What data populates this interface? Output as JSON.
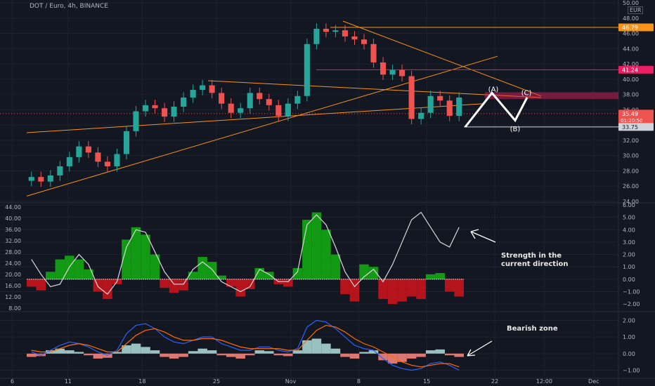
{
  "header": {
    "title": "DOT / Euro, 4h, BINANCE",
    "currency": "EUR"
  },
  "colors": {
    "background": "#131722",
    "grid": "#1e222d",
    "axis_text": "#b2b5be",
    "up": "#26a69a",
    "down": "#ef5350",
    "orange": "#f7931a",
    "red_line": "#e91e63",
    "green_hist": "#13a813",
    "red_hist": "#c9141c",
    "white_line": "#d9d9d9",
    "macd_blue": "#2962ff",
    "macd_orange": "#ff6d00"
  },
  "annotations": {
    "strength": "Strength in the current direction",
    "bearish": "Bearish zone",
    "wave_a": "(A)",
    "wave_b": "(B)",
    "wave_c": "(C)"
  },
  "chart_data": [
    {
      "type": "line",
      "name": "price",
      "title": "DOT / Euro, 4h, BINANCE",
      "ylim": [
        24,
        50
      ],
      "y_ticks": [
        "50.00",
        "48.00",
        "46.00",
        "44.00",
        "42.00",
        "40.00",
        "38.00",
        "36.00",
        "34.00",
        "32.00",
        "30.00",
        "28.00",
        "26.00",
        "24.00"
      ],
      "y_tick_values": [
        50,
        48,
        46,
        44,
        42,
        40,
        38,
        36,
        34,
        32,
        30,
        28,
        26,
        24
      ],
      "x_ticks": [
        "6",
        "11",
        "18",
        "25",
        "Nov",
        "8",
        "15",
        "22",
        "12:00",
        "Dec"
      ],
      "x_tick_positions": [
        0.02,
        0.11,
        0.23,
        0.35,
        0.47,
        0.58,
        0.69,
        0.8,
        0.88,
        0.96
      ],
      "close": [
        27.2,
        26.6,
        27.4,
        28.6,
        29.8,
        31.2,
        30.4,
        29.2,
        28.6,
        30.2,
        33.2,
        35.8,
        36.6,
        36.2,
        35.1,
        36.4,
        37.6,
        38.6,
        39.2,
        38.2,
        36.8,
        35.6,
        36.2,
        38.2,
        37.4,
        36.6,
        35.2,
        36.8,
        37.8,
        44.6,
        46.6,
        46.2,
        46.4,
        45.6,
        45.2,
        44.6,
        42.2,
        40.6,
        41.2,
        40.4,
        34.8,
        35.6,
        37.8,
        37.2,
        35.2,
        37.6
      ],
      "price_labels": [
        {
          "value": 46.79,
          "text": "46.79",
          "color": "#f7931a"
        },
        {
          "value": 41.24,
          "text": "41.24",
          "color": "#e91e63"
        },
        {
          "value": 35.49,
          "text": "35.49",
          "sub": "01:20:50",
          "color": "#ef5350"
        },
        {
          "value": 33.75,
          "text": "33.75",
          "color": "#d1d4dc"
        }
      ],
      "horizontal_levels": [
        46.79,
        41.24,
        33.75
      ],
      "zone": [
        37.4,
        38.3
      ]
    },
    {
      "type": "area",
      "name": "strength-oscillator",
      "ylim": [
        -2.5,
        6
      ],
      "y_ticks": [
        "6.00",
        "5.00",
        "4.00",
        "3.00",
        "2.00",
        "1.00",
        "0.00",
        "−1.00",
        "−2.00"
      ],
      "y_tick_values": [
        6,
        5,
        4,
        3,
        2,
        1,
        0,
        -1,
        -2
      ],
      "left_ticks": [
        "44.00",
        "40.00",
        "36.00",
        "32.00",
        "28.00",
        "24.00",
        "20.00",
        "16.00",
        "12.00",
        "8.00"
      ],
      "histogram": [
        -0.6,
        -0.9,
        0.6,
        1.6,
        1.9,
        1.6,
        0.8,
        -1.0,
        -1.6,
        -0.4,
        3.2,
        4.2,
        3.6,
        2.0,
        -0.7,
        -1.1,
        -0.9,
        0.6,
        1.8,
        1.4,
        0.3,
        -0.6,
        -1.4,
        -0.8,
        0.9,
        0.6,
        -0.4,
        -0.6,
        0.9,
        4.8,
        5.4,
        4.0,
        2.0,
        -1.2,
        -1.8,
        1.2,
        1.0,
        -1.6,
        -2.0,
        -1.8,
        -1.4,
        -1.6,
        0.4,
        0.5,
        -1.0,
        -1.4
      ],
      "line": [
        1.6,
        0.4,
        -0.6,
        -0.4,
        1.0,
        2.0,
        1.2,
        -0.6,
        -1.2,
        -0.2,
        2.6,
        4.0,
        3.8,
        2.2,
        0.6,
        -0.4,
        -0.4,
        0.8,
        1.4,
        0.8,
        -0.2,
        -0.6,
        -1.0,
        -0.6,
        0.8,
        0.4,
        -0.2,
        -0.2,
        0.6,
        4.4,
        5.2,
        4.4,
        2.6,
        0.6,
        -0.6,
        0.2,
        0.8,
        -0.2,
        1.2,
        3.0,
        4.8,
        5.4,
        4.2,
        3.0,
        2.6,
        4.2
      ]
    },
    {
      "type": "line",
      "name": "macd",
      "ylim": [
        -1.4,
        2.4
      ],
      "y_ticks": [
        "2.00",
        "1.00",
        "0.00",
        "−1.00"
      ],
      "y_tick_values": [
        2,
        1,
        0,
        -1
      ],
      "histogram": [
        -0.2,
        -0.15,
        0.2,
        0.3,
        0.2,
        0.1,
        -0.1,
        -0.3,
        -0.25,
        0.1,
        0.5,
        0.6,
        0.4,
        0.2,
        -0.2,
        -0.3,
        -0.2,
        0.15,
        0.3,
        0.2,
        -0.1,
        -0.2,
        -0.3,
        -0.1,
        0.2,
        0.15,
        -0.1,
        -0.15,
        0.2,
        0.8,
        0.9,
        0.6,
        0.3,
        -0.2,
        -0.3,
        0.1,
        0.2,
        -0.4,
        -0.6,
        -0.5,
        -0.3,
        -0.2,
        0.2,
        0.25,
        -0.1,
        -0.2
      ],
      "series": [
        {
          "color": "#2962ff",
          "values": [
            0.1,
            -0.1,
            0.2,
            0.5,
            0.7,
            0.6,
            0.4,
            0.1,
            -0.1,
            0.2,
            1.2,
            1.7,
            1.8,
            1.5,
            1.0,
            0.7,
            0.6,
            0.8,
            1.0,
            1.0,
            0.6,
            0.4,
            0.2,
            0.2,
            0.4,
            0.4,
            0.2,
            0.1,
            0.3,
            1.6,
            2.0,
            1.9,
            1.5,
            1.0,
            0.5,
            0.3,
            0.2,
            -0.3,
            -0.7,
            -0.9,
            -1.0,
            -0.9,
            -0.6,
            -0.5,
            -0.7,
            -1.0
          ]
        },
        {
          "color": "#ff6d00",
          "values": [
            0.2,
            0.1,
            0.1,
            0.3,
            0.5,
            0.6,
            0.5,
            0.3,
            0.1,
            0.1,
            0.6,
            1.1,
            1.4,
            1.5,
            1.3,
            1.0,
            0.8,
            0.8,
            0.9,
            0.9,
            0.8,
            0.6,
            0.4,
            0.3,
            0.3,
            0.3,
            0.3,
            0.2,
            0.2,
            0.8,
            1.4,
            1.7,
            1.6,
            1.3,
            0.9,
            0.6,
            0.4,
            0.1,
            -0.2,
            -0.5,
            -0.7,
            -0.8,
            -0.7,
            -0.6,
            -0.6,
            -0.8
          ]
        }
      ]
    }
  ]
}
